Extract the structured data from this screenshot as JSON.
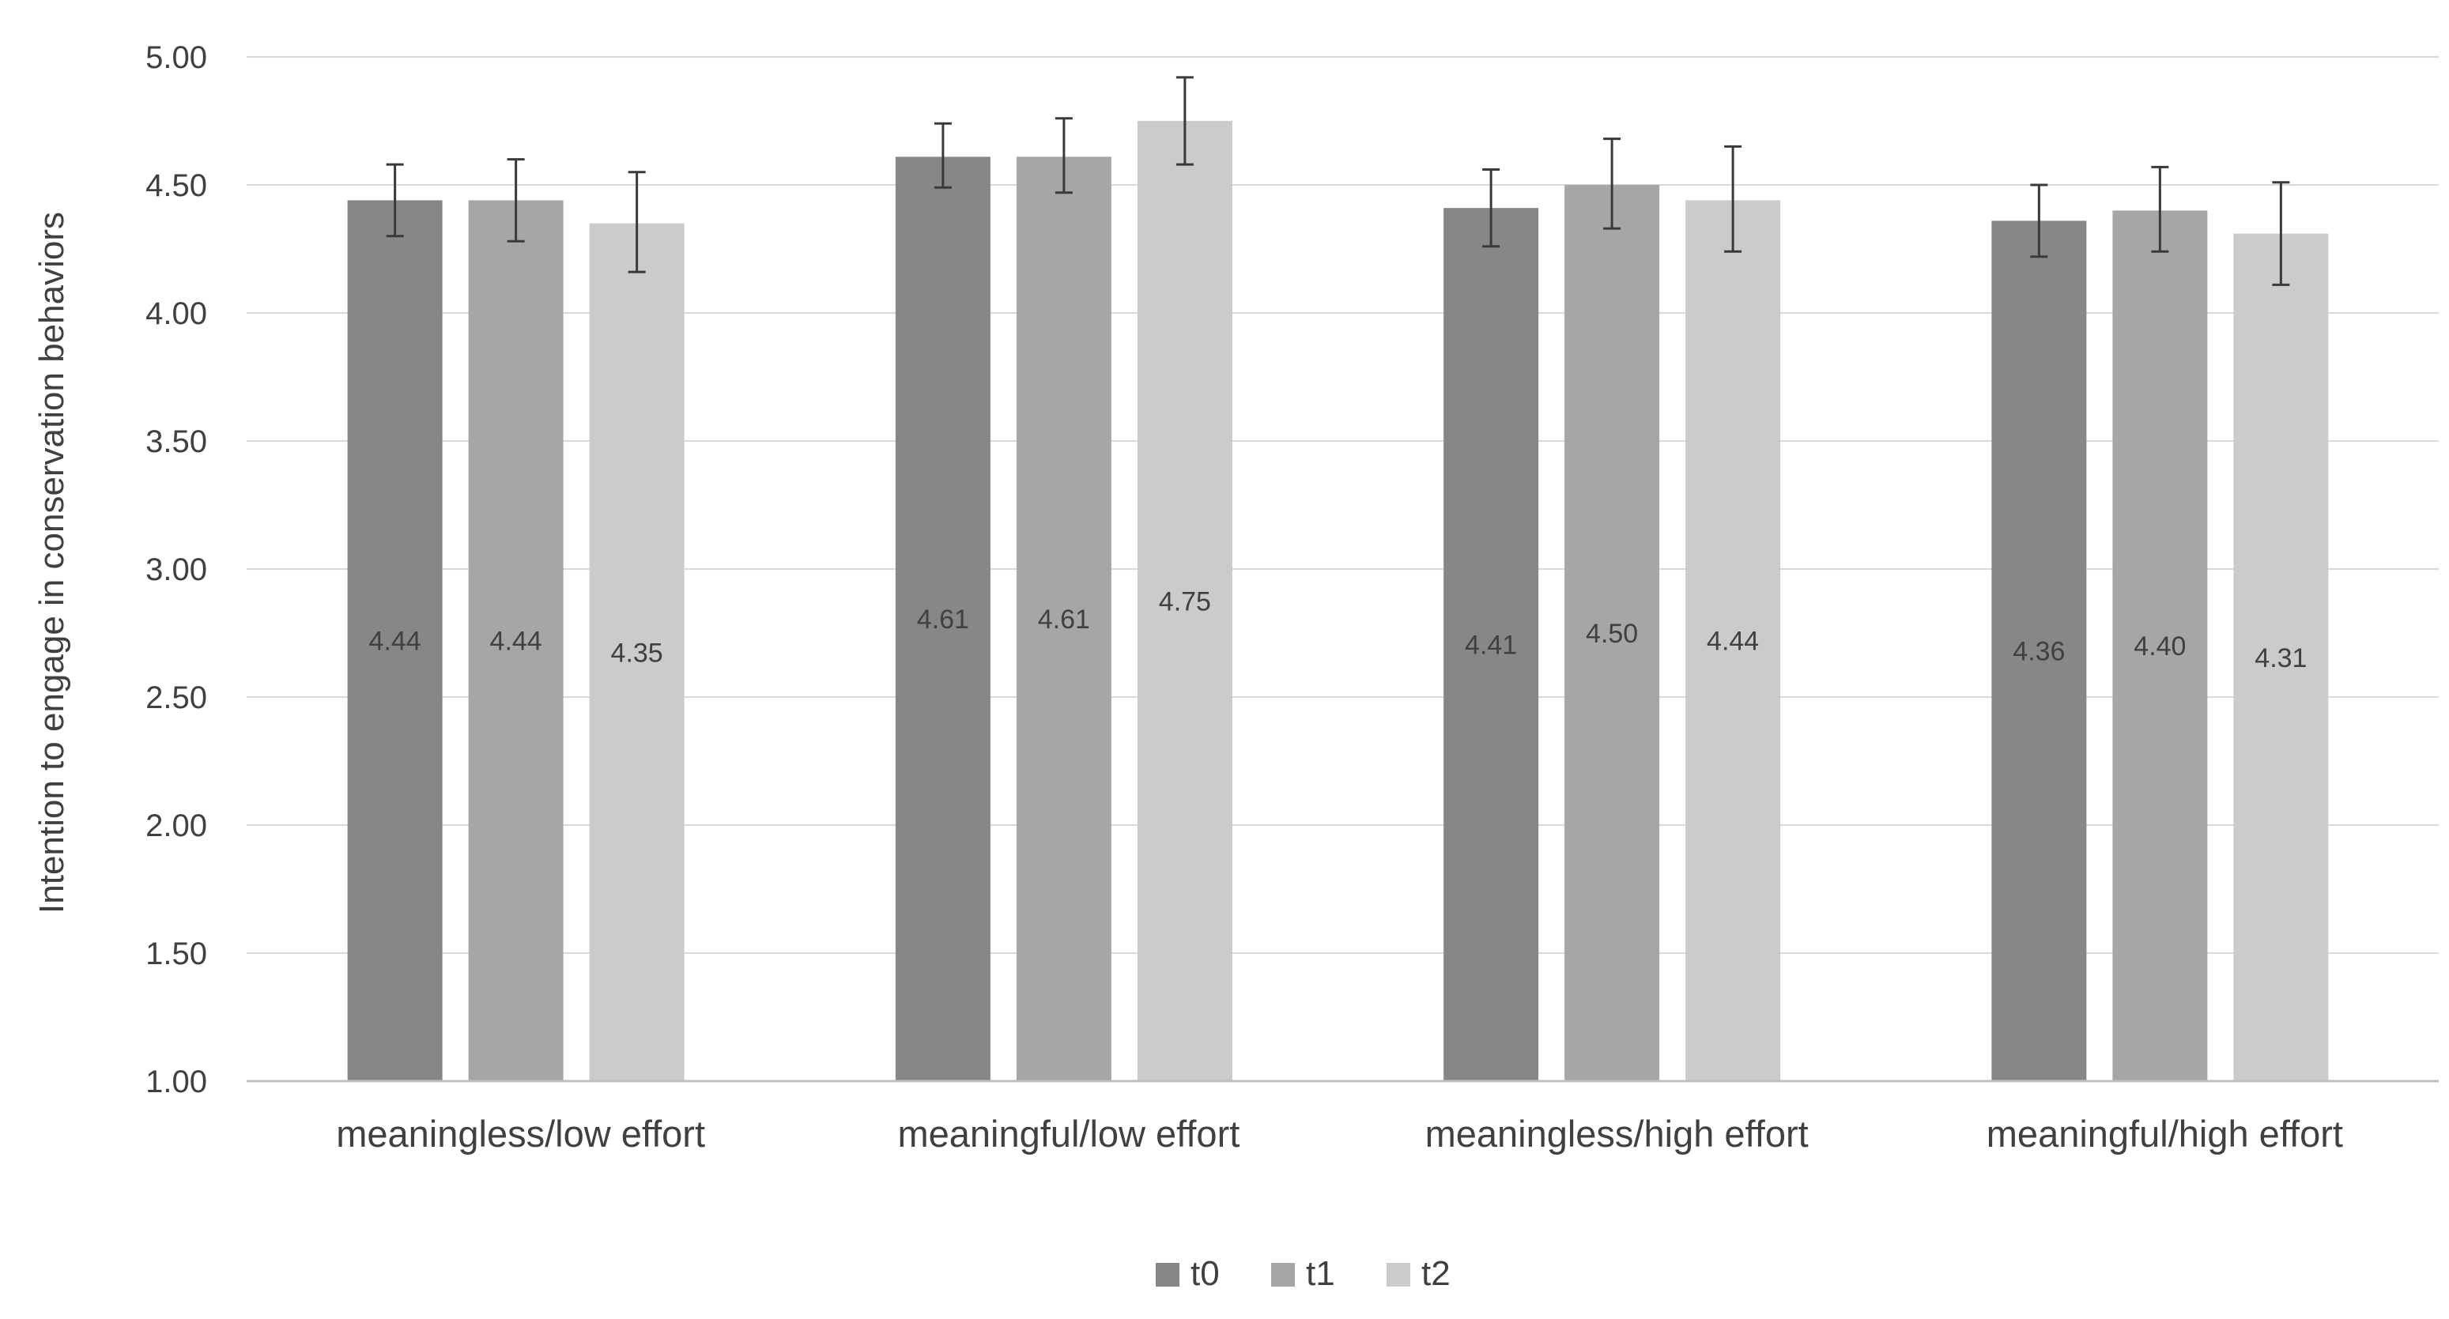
{
  "chart_data": {
    "type": "bar",
    "title": "",
    "xlabel": "",
    "ylabel": "Intention to engage in  conservation behaviors",
    "ylim": [
      1.0,
      5.0
    ],
    "yticks": [
      "1.00",
      "1.50",
      "2.00",
      "2.50",
      "3.00",
      "3.50",
      "4.00",
      "4.50",
      "5.00"
    ],
    "grid": true,
    "legend_position": "bottom-center",
    "categories": [
      "meaningless/low effort",
      "meaningful/low effort",
      "meaningless/high effort",
      "meaningful/high effort"
    ],
    "series": [
      {
        "name": "t0",
        "color": "#878787",
        "values": [
          4.44,
          4.61,
          4.41,
          4.36
        ],
        "labels": [
          "4.44",
          "4.61",
          "4.41",
          "4.36"
        ],
        "error_low": [
          4.3,
          4.49,
          4.26,
          4.22
        ],
        "error_high": [
          4.58,
          4.74,
          4.56,
          4.5
        ]
      },
      {
        "name": "t1",
        "color": "#a6a6a6",
        "values": [
          4.44,
          4.61,
          4.5,
          4.4
        ],
        "labels": [
          "4.44",
          "4.61",
          "4.50",
          "4.40"
        ],
        "error_low": [
          4.28,
          4.47,
          4.33,
          4.24
        ],
        "error_high": [
          4.6,
          4.76,
          4.68,
          4.57
        ]
      },
      {
        "name": "t2",
        "color": "#cbcbcb",
        "values": [
          4.35,
          4.75,
          4.44,
          4.31
        ],
        "labels": [
          "4.35",
          "4.75",
          "4.44",
          "4.31"
        ],
        "error_low": [
          4.16,
          4.58,
          4.24,
          4.11
        ],
        "error_high": [
          4.55,
          4.92,
          4.65,
          4.51
        ]
      }
    ]
  }
}
